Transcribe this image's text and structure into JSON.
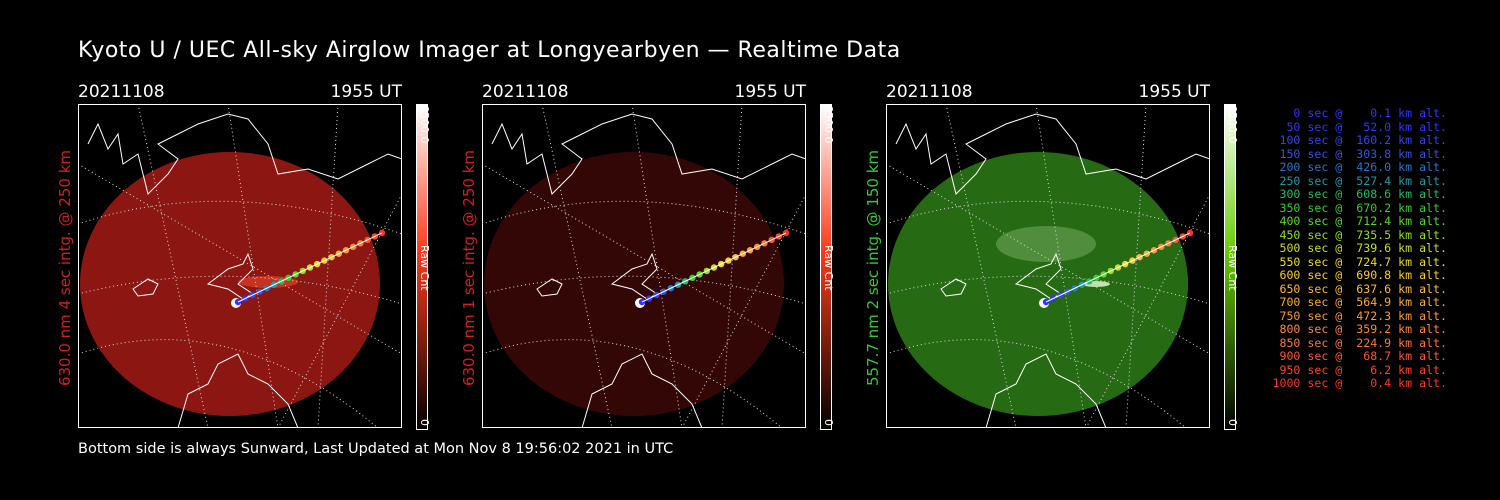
{
  "header": {
    "title": "Kyoto U / UEC All-sky Airglow Imager at Longyearbyen — Realtime Data"
  },
  "panels": [
    {
      "date": "20211108",
      "time": "1955 UT",
      "label": "630.0 nm 4 sec intg. @ 250 km",
      "label_color": "#d02020",
      "cbar_top": "6500.0",
      "cbar_bottom": "0",
      "cbar_name": "Raw Cnt",
      "cbar_color": "#ff3a1a",
      "disk_color": "#a41a14",
      "disk_opacity": 0.85,
      "cbar_icon": "red-colorbar"
    },
    {
      "date": "20211108",
      "time": "1955 UT",
      "label": "630.0 nm 1 sec intg. @ 250 km",
      "label_color": "#d02020",
      "cbar_top": "6500.0",
      "cbar_bottom": "0",
      "cbar_name": "Raw Cnt",
      "cbar_color": "#ff3a1a",
      "disk_color": "#3a0808",
      "disk_opacity": 0.9,
      "cbar_icon": "red-colorbar"
    },
    {
      "date": "20211108",
      "time": "1955 UT",
      "label": "557.7 nm 2 sec intg. @ 150 km",
      "label_color": "#33cc33",
      "cbar_top": "6500.0",
      "cbar_bottom": "0",
      "cbar_name": "Raw Cnt",
      "cbar_color": "#66cc00",
      "disk_color": "#2e7d18",
      "disk_opacity": 0.85,
      "cbar_icon": "green-colorbar"
    }
  ],
  "legend": [
    {
      "text": "   0 sec @    0.1 km alt.",
      "color": "#3333ff"
    },
    {
      "text": "  50 sec @   52.0 km alt.",
      "color": "#3333ff"
    },
    {
      "text": " 100 sec @  160.2 km alt.",
      "color": "#3344ee"
    },
    {
      "text": " 150 sec @  303.8 km alt.",
      "color": "#3355dd"
    },
    {
      "text": " 200 sec @  426.0 km alt.",
      "color": "#2277cc"
    },
    {
      "text": " 250 sec @  527.4 km alt.",
      "color": "#2299aa"
    },
    {
      "text": " 300 sec @  608.6 km alt.",
      "color": "#22bb66"
    },
    {
      "text": " 350 sec @  670.2 km alt.",
      "color": "#33cc33"
    },
    {
      "text": " 400 sec @  712.4 km alt.",
      "color": "#55dd22"
    },
    {
      "text": " 450 sec @  735.5 km alt.",
      "color": "#99dd22"
    },
    {
      "text": " 500 sec @  739.6 km alt.",
      "color": "#ccdd22"
    },
    {
      "text": " 550 sec @  724.7 km alt.",
      "color": "#eedd22"
    },
    {
      "text": " 600 sec @  690.8 km alt.",
      "color": "#ffcc22"
    },
    {
      "text": " 650 sec @  637.6 km alt.",
      "color": "#ffbb33"
    },
    {
      "text": " 700 sec @  564.9 km alt.",
      "color": "#ffaa33"
    },
    {
      "text": " 750 sec @  472.3 km alt.",
      "color": "#ff9933"
    },
    {
      "text": " 800 sec @  359.2 km alt.",
      "color": "#ff8833"
    },
    {
      "text": " 850 sec @  224.9 km alt.",
      "color": "#ff7733"
    },
    {
      "text": " 900 sec @   68.7 km alt.",
      "color": "#ff5533"
    },
    {
      "text": " 950 sec @    6.2 km alt.",
      "color": "#ff4422"
    },
    {
      "text": "1000 sec @    0.4 km alt.",
      "color": "#ff3322"
    }
  ],
  "footer": {
    "text": "Bottom side is always Sunward, Last Updated at Mon Nov  8 19:56:02 2021 in UTC"
  }
}
